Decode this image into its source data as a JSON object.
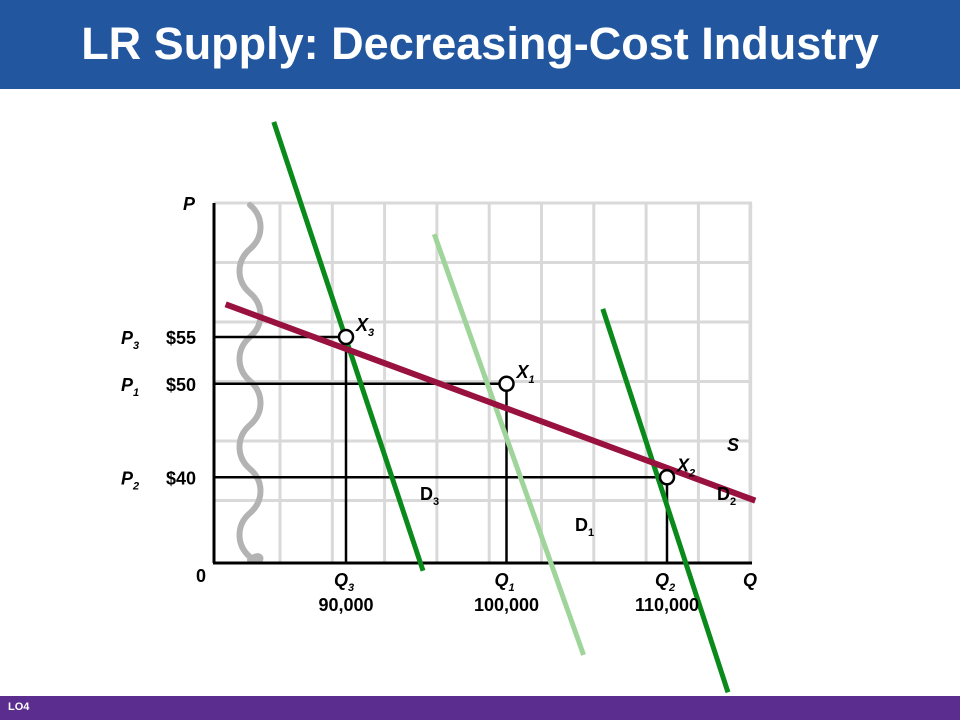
{
  "header": {
    "title": "LR Supply: Decreasing-Cost Industry"
  },
  "footer": {
    "code": "LO4"
  },
  "colors": {
    "header_bg": "#2257a0",
    "footer_bg": "#5b2d8e",
    "supply": "#99113f",
    "demand": "#0a8a1a",
    "demand_initial": "#9fd49a",
    "grid": "#d9d9d9",
    "axis_break": "#b3b3b3"
  },
  "chart_data": {
    "type": "line",
    "xlabel": "Q",
    "ylabel": "P",
    "origin_label": "0",
    "grid": true,
    "price_levels": [
      {
        "name": "P",
        "sub": "3",
        "label": "$55",
        "value": 55
      },
      {
        "name": "P",
        "sub": "1",
        "label": "$50",
        "value": 50
      },
      {
        "name": "P",
        "sub": "2",
        "label": "$40",
        "value": 40
      }
    ],
    "quantity_levels": [
      {
        "name": "Q",
        "sub": "3",
        "label": "90,000",
        "value": 90000
      },
      {
        "name": "Q",
        "sub": "1",
        "label": "100,000",
        "value": 100000
      },
      {
        "name": "Q",
        "sub": "2",
        "label": "110,000",
        "value": 110000
      }
    ],
    "series": [
      {
        "name": "S",
        "sub": "",
        "kind": "supply",
        "points": [
          [
            82500,
            58.5
          ],
          [
            115500,
            37.5
          ]
        ]
      },
      {
        "name": "D",
        "sub": "3",
        "kind": "demand",
        "points": [
          [
            85500,
            78
          ],
          [
            94800,
            30
          ]
        ]
      },
      {
        "name": "D",
        "sub": "1",
        "kind": "demand_initial",
        "points": [
          [
            95500,
            66
          ],
          [
            104800,
            21
          ]
        ]
      },
      {
        "name": "D",
        "sub": "2",
        "kind": "demand",
        "points": [
          [
            106000,
            58
          ],
          [
            113800,
            17
          ]
        ]
      }
    ],
    "equilibria": [
      {
        "name": "X",
        "sub": "3",
        "q": 90000,
        "p": 55
      },
      {
        "name": "X",
        "sub": "1",
        "q": 100000,
        "p": 50
      },
      {
        "name": "X",
        "sub": "2",
        "q": 110000,
        "p": 40
      }
    ]
  }
}
